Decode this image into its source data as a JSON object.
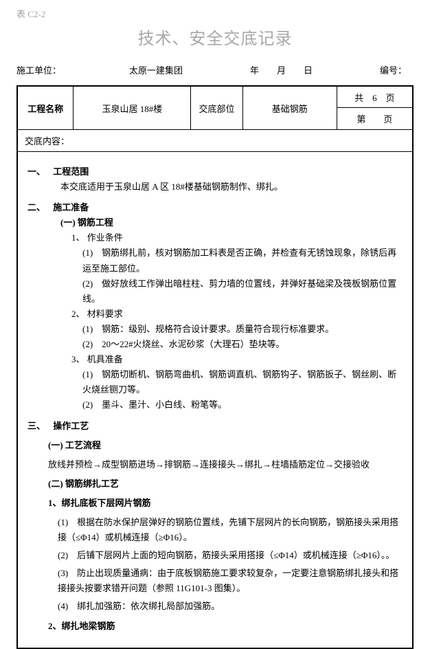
{
  "header": {
    "table_code": "表 C2-2",
    "doc_title": "技术、安全交底记录",
    "unit_label": "施工单位：",
    "company": "太原一建集团",
    "date_text": "年　　月　　日",
    "code_label": "编号："
  },
  "info": {
    "project_name_label": "工程名称",
    "project_name": "玉泉山居 18#楼",
    "part_label": "交底部位",
    "part": "基础钢筋",
    "page_total": "共　6　页",
    "page_current": "第　　页"
  },
  "disclose_label": "交底内容：",
  "sections": {
    "s1": {
      "num": "一、",
      "title": "工程范围",
      "body": "本交底适用于玉泉山居 A 区 18#楼基础钢筋制作、绑扎。"
    },
    "s2": {
      "num": "二、",
      "title": "施工准备",
      "sub1": {
        "head": "(一) 钢筋工程",
        "a_head": "1、 作业条件",
        "a1": "(1)　钢筋绑扎前，核对钢筋加工料表是否正确，并检查有无锈蚀现象，除锈后再运至施工部位。",
        "a2": "(2)　做好放线工作弹出暗柱柱、剪力墙的位置线，并弹好基础梁及筏板钢筋位置线。",
        "b_head": "2、 材料要求",
        "b1": "(1)　钢筋：级别、规格符合设计要求。质量符合现行标准要求。",
        "b2": "(2)　20～22#火烧丝、水泥砂浆（大理石）垫块等。",
        "c_head": "3、 机具准备",
        "c1": "(1)　钢筋切断机、钢筋弯曲机、钢筋调直机、钢筋钩子、钢筋扳子、钢丝刷、断火烧丝铡刀等。",
        "c2": "(2)　墨斗、墨汁、小白线、粉笔等。"
      }
    },
    "s3": {
      "num": "三、",
      "title": "操作工艺",
      "flow_head": "(一) 工艺流程",
      "flow": "放线并预检→成型钢筋进场→排钢筋→连接接头→绑扎→柱墙插筋定位→交接验收",
      "tech_head": "(二) 钢筋绑扎工艺",
      "t1_head": "1、绑扎底板下层网片钢筋",
      "t1_1": "(1)　根据在防水保护层弹好的钢筋位置线，先铺下层网片的长向钢筋，钢筋接头采用搭接（≤Φ14）或机械连接（≥Φ16）。",
      "t1_2": "(2)　后铺下层网片上面的短向钢筋，筋接头采用搭接（≤Φ14）或机械连接（≥Φ16）。。",
      "t1_3": "(3)　防止出现质量通病：由于底板钢筋施工要求较复杂，一定要注意钢筋绑扎接头和搭接接头按要求错开问题（参照 11G101-3 图集）。",
      "t1_4": "(4)　绑扎加强筋：依次绑扎局部加强筋。",
      "t2_head": "2、绑扎地梁钢筋"
    }
  }
}
